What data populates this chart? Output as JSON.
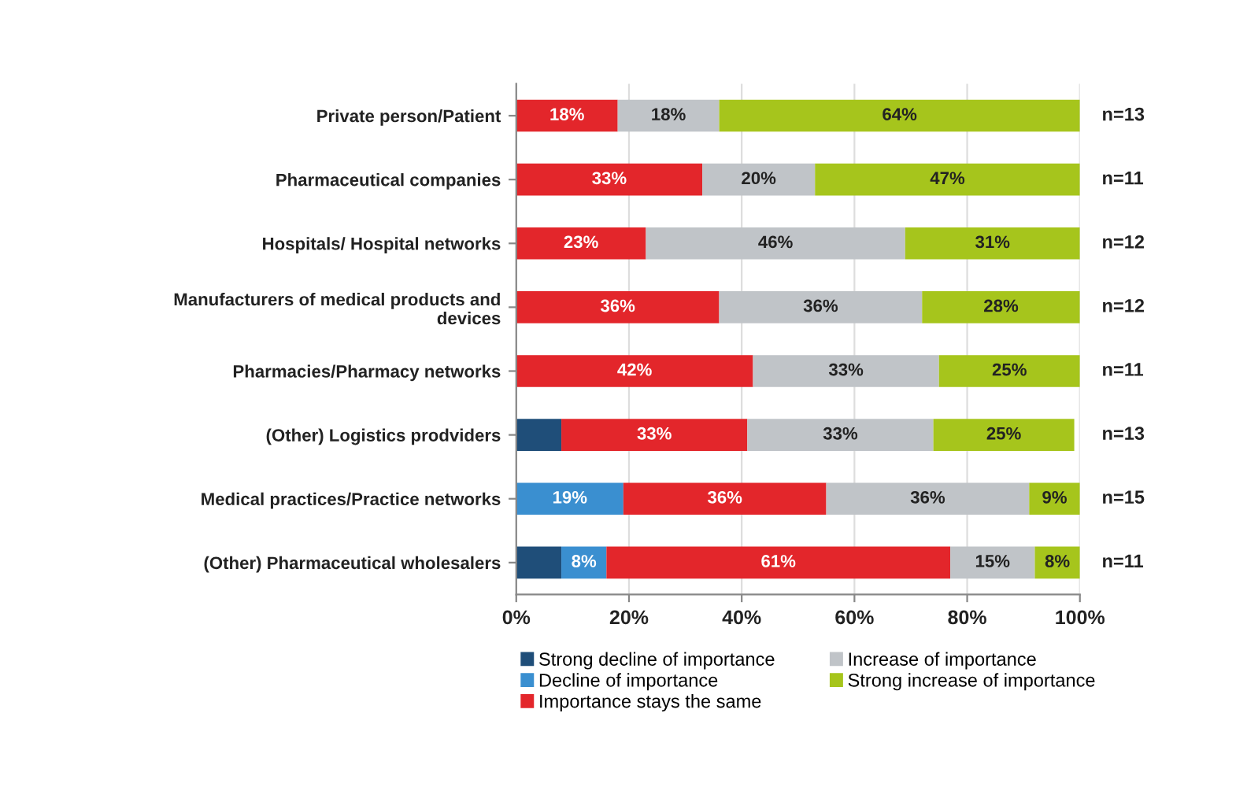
{
  "chart_data": {
    "type": "bar",
    "orientation": "horizontal",
    "stacked": true,
    "categories": [
      "Private person/Patient",
      "Pharmaceutical companies",
      "Hospitals/ Hospital networks",
      "Manufacturers of medical products and\ndevices",
      "Pharmacies/Pharmacy networks",
      "(Other) Logistics prodviders",
      "Medical practices/Practice networks",
      "(Other) Pharmaceutical wholesalers"
    ],
    "series": [
      {
        "name": "Strong decline of importance",
        "color": "#1f4e79",
        "values": [
          null,
          null,
          null,
          null,
          null,
          8,
          null,
          8
        ]
      },
      {
        "name": "Decline of importance",
        "color": "#3a8fd0",
        "values": [
          null,
          null,
          null,
          null,
          null,
          null,
          19,
          8
        ],
        "value_labels": [
          null,
          null,
          null,
          null,
          null,
          null,
          "19%",
          "8%"
        ]
      },
      {
        "name": "Importance stays the same",
        "color": "#e3262b",
        "values": [
          18,
          33,
          23,
          36,
          42,
          33,
          36,
          61
        ],
        "value_labels": [
          "18%",
          "33%",
          "23%",
          "36%",
          "42%",
          "33%",
          "36%",
          "61%"
        ]
      },
      {
        "name": "Increase of importance",
        "color": "#c0c4c8",
        "values": [
          18,
          20,
          46,
          36,
          33,
          33,
          36,
          15
        ],
        "value_labels": [
          "18%",
          "20%",
          "46%",
          "36%",
          "33%",
          "33%",
          "36%",
          "15%"
        ]
      },
      {
        "name": "Strong increase of importance",
        "color": "#a6c51c",
        "values": [
          64,
          47,
          31,
          28,
          25,
          25,
          9,
          8
        ],
        "value_labels": [
          "64%",
          "47%",
          "31%",
          "28%",
          "25%",
          "25%",
          "9%",
          "8%"
        ]
      }
    ],
    "xlim": [
      0,
      100
    ],
    "xticks": [
      {
        "value": 0,
        "label": "0%"
      },
      {
        "value": 20,
        "label": "20%"
      },
      {
        "value": 40,
        "label": "40%"
      },
      {
        "value": 60,
        "label": "60%"
      },
      {
        "value": 80,
        "label": "80%"
      },
      {
        "value": 100,
        "label": "100%"
      }
    ],
    "grid": "x",
    "legend": "bottom",
    "annotations": [
      "n=13",
      "n=11",
      "n=12",
      "n=12",
      "n=11",
      "n=13",
      "n=15",
      "n=11"
    ]
  }
}
